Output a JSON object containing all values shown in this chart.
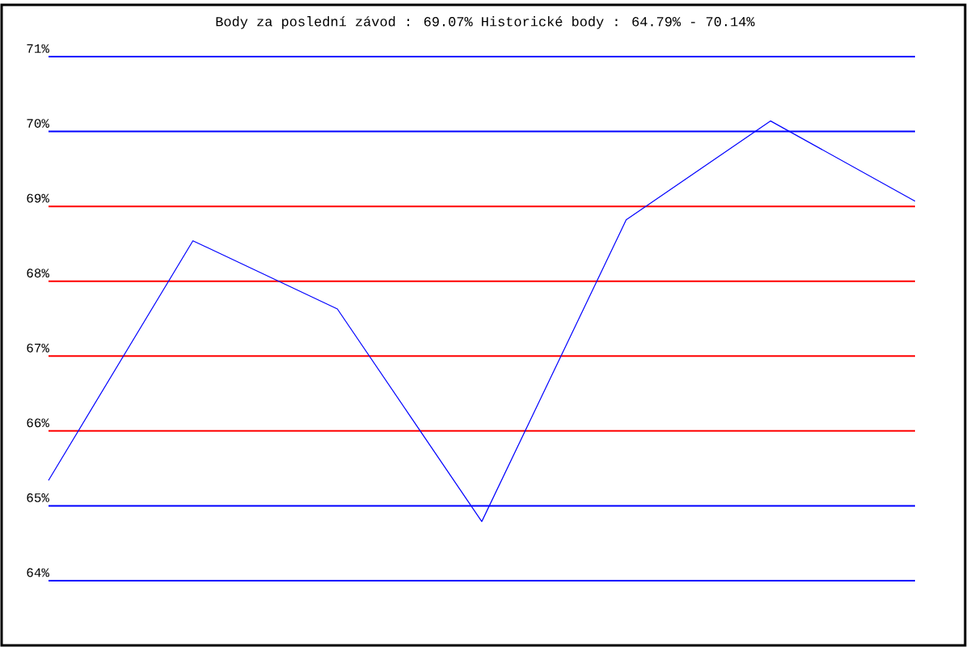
{
  "chart_data": {
    "type": "line",
    "title": "Body za poslední závod : 69.07%  Historické body : 64.79% - 70.14%",
    "categories": [
      null,
      null,
      null,
      null,
      null,
      null,
      null
    ],
    "series": [
      {
        "color": "#0000ff",
        "values": [
          65.34,
          68.54,
          67.63,
          64.79,
          68.82,
          70.14,
          69.07
        ]
      }
    ],
    "ylim": [
      64,
      71
    ],
    "yticks": [
      {
        "value": 64,
        "label": "64%"
      },
      {
        "value": 65,
        "label": "65%"
      },
      {
        "value": 66,
        "label": "66%"
      },
      {
        "value": 67,
        "label": "67%"
      },
      {
        "value": 68,
        "label": "68%"
      },
      {
        "value": 69,
        "label": "69%"
      },
      {
        "value": 70,
        "label": "70%"
      },
      {
        "value": 71,
        "label": "71%"
      }
    ],
    "tick_labels": "y",
    "marker": "none",
    "line_style": "solid",
    "ref_lines": [
      {
        "axis": "y",
        "value": 65,
        "color": "#0000ff"
      },
      {
        "axis": "y",
        "value": 70,
        "color": "#0000ff"
      },
      {
        "axis": "y",
        "value": 66,
        "color": "#ff0000"
      },
      {
        "axis": "y",
        "value": 67,
        "color": "#ff0000"
      },
      {
        "axis": "y",
        "value": 68,
        "color": "#ff0000"
      },
      {
        "axis": "y",
        "value": 69,
        "color": "#ff0000"
      }
    ]
  }
}
